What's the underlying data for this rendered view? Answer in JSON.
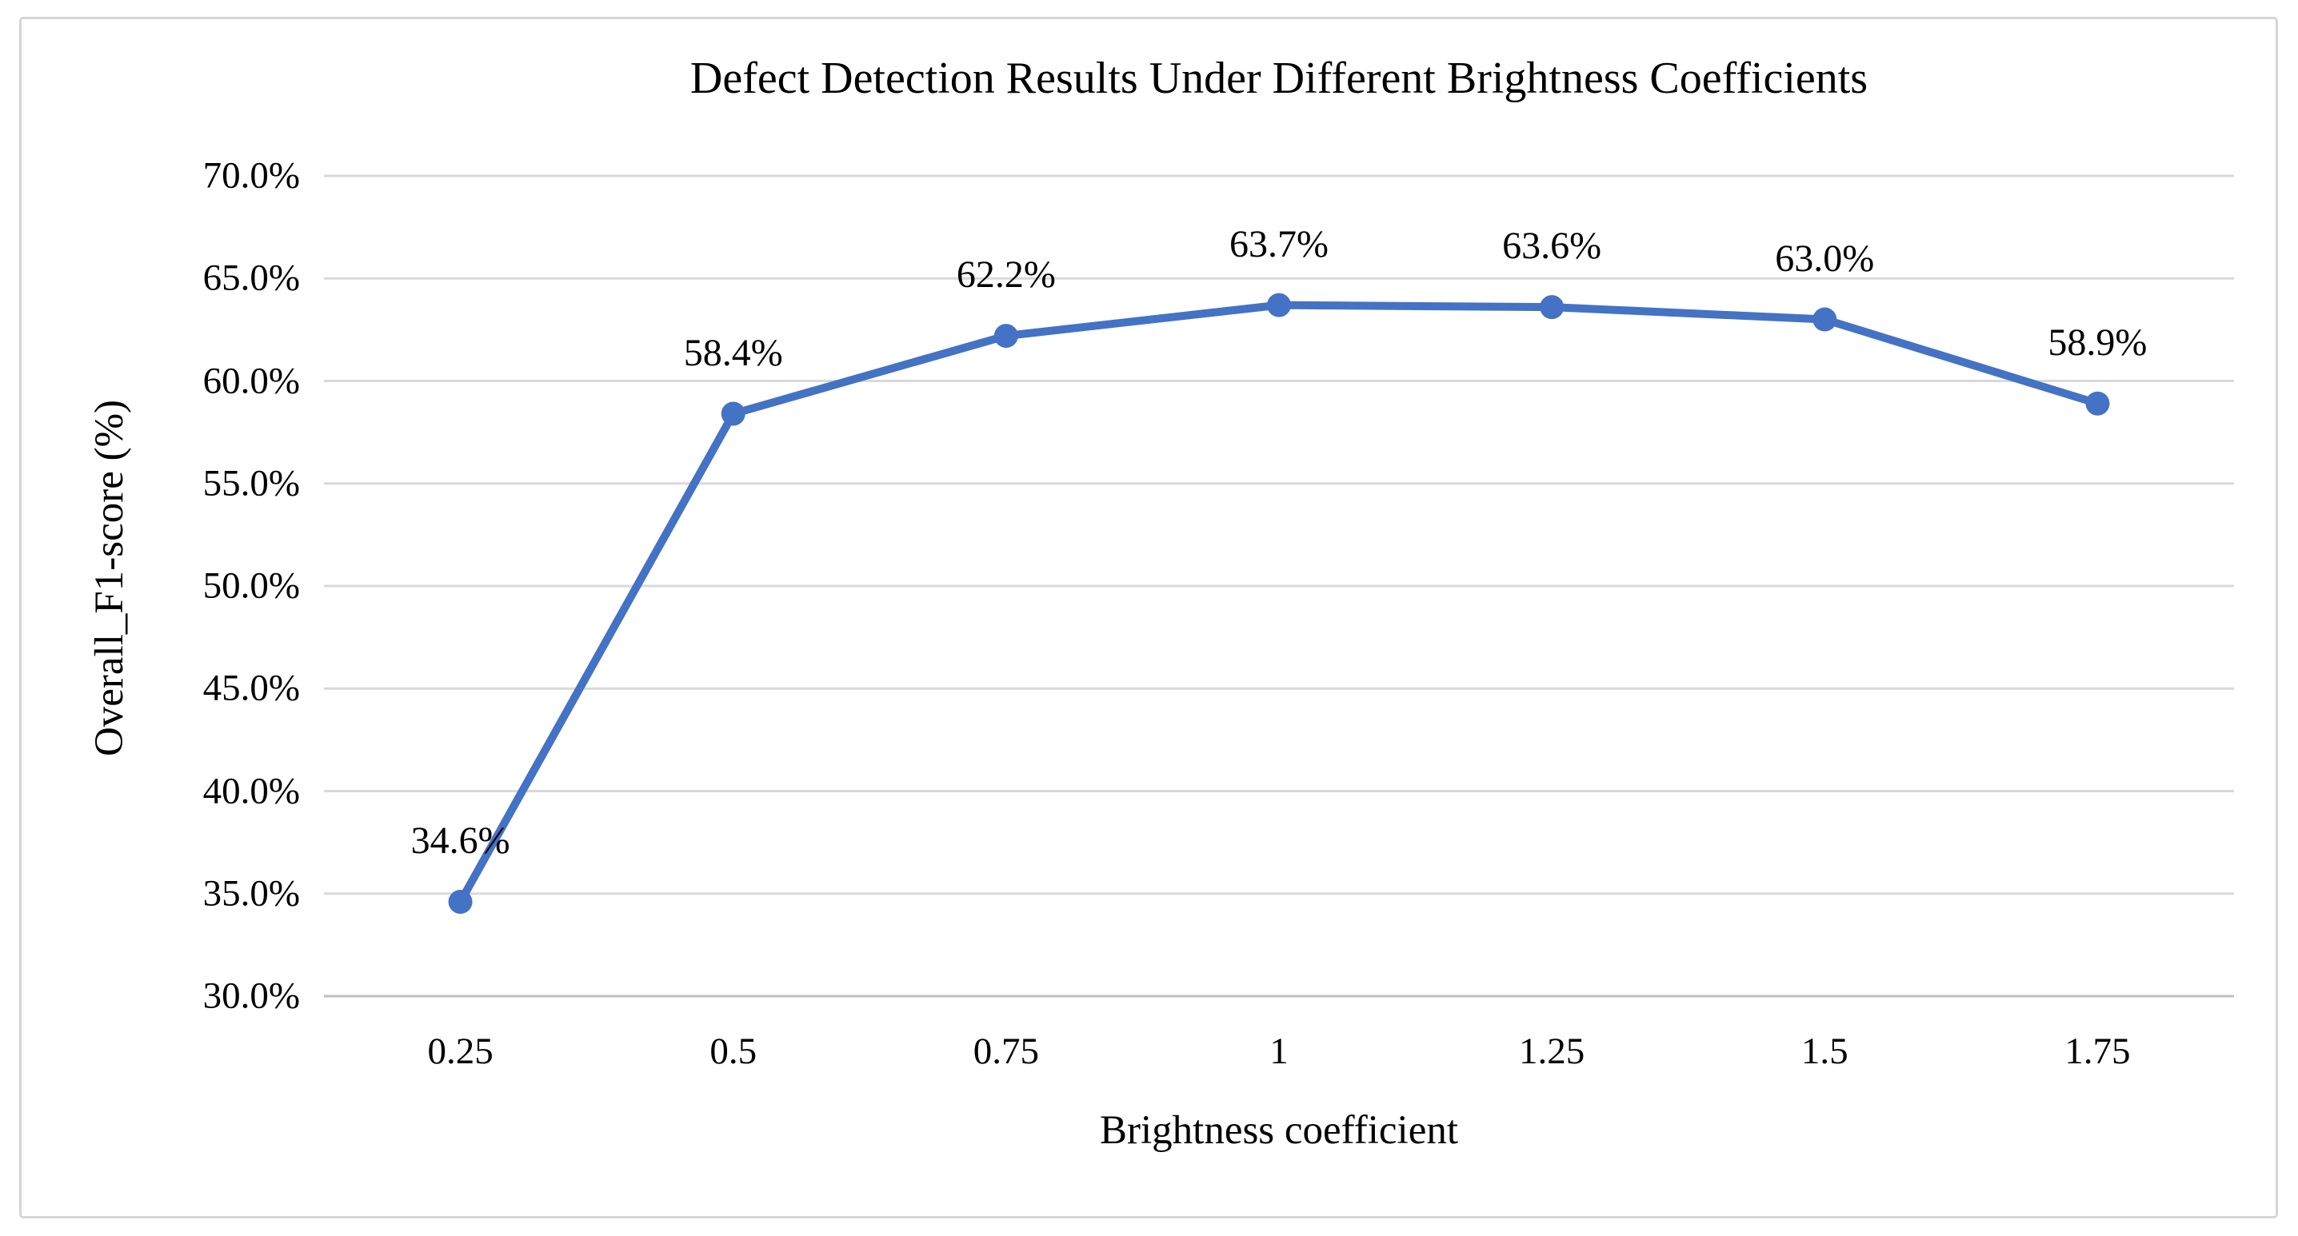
{
  "chart_data": {
    "type": "line",
    "title": "Defect Detection Results Under Different Brightness Coefficients",
    "xlabel": "Brightness coefficient",
    "ylabel": "Overall_F1-score (%)",
    "categories": [
      "0.25",
      "0.5",
      "0.75",
      "1",
      "1.25",
      "1.5",
      "1.75"
    ],
    "series": [
      {
        "name": "Overall_F1-score",
        "values": [
          34.6,
          58.4,
          62.2,
          63.7,
          63.6,
          63.0,
          58.9
        ],
        "point_labels": [
          "34.6%",
          "58.4%",
          "62.2%",
          "63.7%",
          "63.6%",
          "63.0%",
          "58.9%"
        ]
      }
    ],
    "ylim": [
      30,
      70
    ],
    "y_tick_step": 5,
    "y_tick_labels": [
      "70.0%",
      "65.0%",
      "60.0%",
      "55.0%",
      "50.0%",
      "45.0%",
      "40.0%",
      "35.0%",
      "30.0%"
    ],
    "grid": "horizontal-on",
    "legend": "none",
    "colors": {
      "line": "#4472C4",
      "marker": "#4472C4",
      "gridline": "#D9D9D9",
      "axis_line": "#BFBFBF",
      "text": "#000000",
      "frame_border": "#D6D6D6",
      "background": "#FFFFFF"
    }
  }
}
